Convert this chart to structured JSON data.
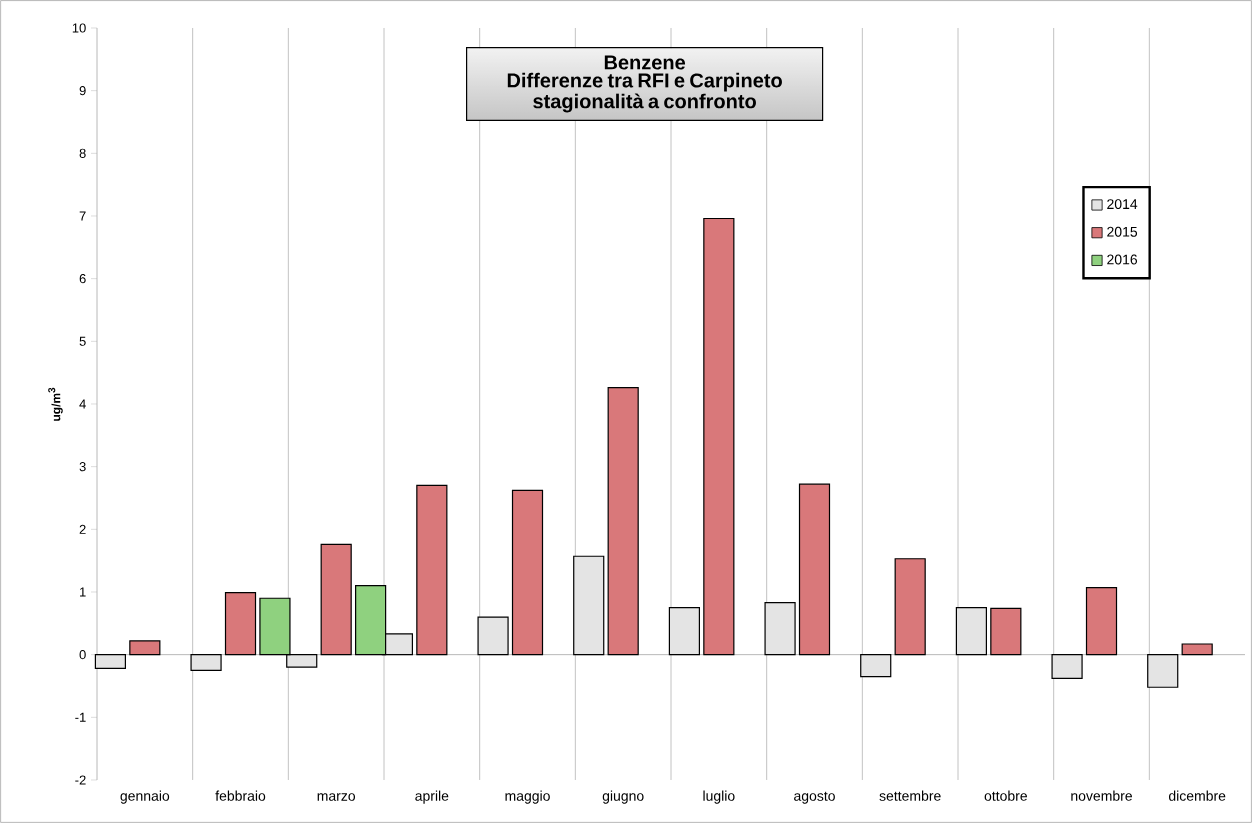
{
  "chart_data": {
    "type": "bar",
    "title": "Benzene",
    "subtitle": "Differenze tra RFI e Carpineto stagionalità a confronto",
    "ylabel": "ug/m$^{3}$",
    "categories": [
      "gennaio",
      "febbraio",
      "marzo",
      "aprile",
      "maggio",
      "giugno",
      "luglio",
      "agosto",
      "settembre",
      "ottobre",
      "novembre",
      "dicembre"
    ],
    "series": [
      {
        "name": "2014",
        "color": "#e4e4e4",
        "values": [
          -0.22,
          -0.25,
          -0.2,
          0.33,
          0.6,
          1.57,
          0.75,
          0.83,
          -0.35,
          0.75,
          -0.38,
          -0.52
        ]
      },
      {
        "name": "2015",
        "color": "#d9787a",
        "values": [
          0.22,
          0.99,
          1.76,
          2.7,
          2.62,
          4.26,
          6.96,
          2.72,
          1.53,
          0.74,
          1.07,
          0.17
        ]
      },
      {
        "name": "2016",
        "color": "#8fd17f",
        "values": [
          null,
          0.9,
          1.1,
          null,
          null,
          null,
          null,
          null,
          null,
          null,
          null,
          null
        ]
      }
    ],
    "ylim": [
      -2,
      10
    ],
    "yticks": [
      -2,
      -1,
      0,
      1,
      2,
      3,
      4,
      5,
      6,
      7,
      8,
      9,
      10
    ],
    "grid": "x",
    "legend": "top right"
  }
}
